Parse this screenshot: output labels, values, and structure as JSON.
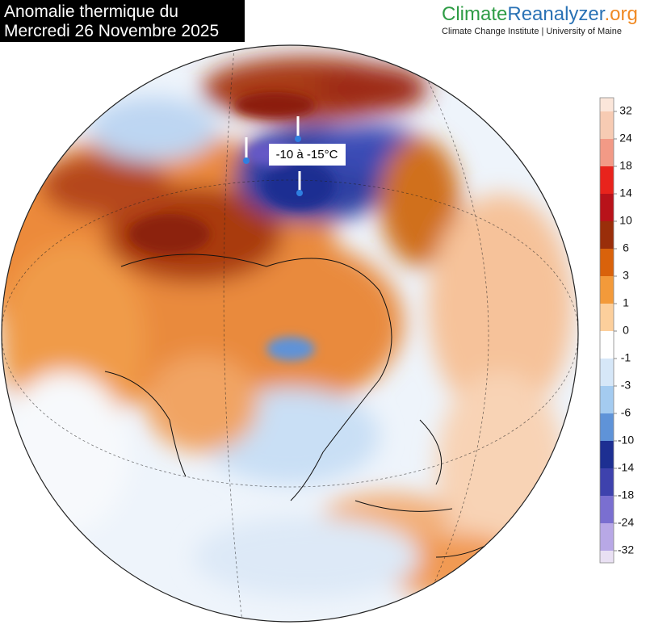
{
  "header": {
    "title_lines": [
      "Anomalie thermique du",
      "Mercredi 26 Novembre 2025"
    ]
  },
  "logo": {
    "parts": [
      "Climate",
      "Reanalyzer",
      ".org"
    ],
    "tagline": "Climate Change Institute | University of Maine"
  },
  "map": {
    "annotation": "-10 à -15°C"
  },
  "legend": {
    "ticks": [
      32,
      24,
      18,
      14,
      10,
      6,
      3,
      1,
      0,
      -1,
      -3,
      -6,
      -10,
      -14,
      -18,
      -24,
      -32
    ],
    "colors": [
      "#fbe6da",
      "#f7cbb3",
      "#f29a86",
      "#e8231c",
      "#b8121a",
      "#9a2e0a",
      "#d9620b",
      "#f39a3a",
      "#fccf9c",
      "#ffffff",
      "#d6e7f8",
      "#a4cbf0",
      "#5f93d8",
      "#1d2f92",
      "#3e42ad",
      "#7a6fd0",
      "#b8a8e6",
      "#e9e0f3"
    ]
  }
}
